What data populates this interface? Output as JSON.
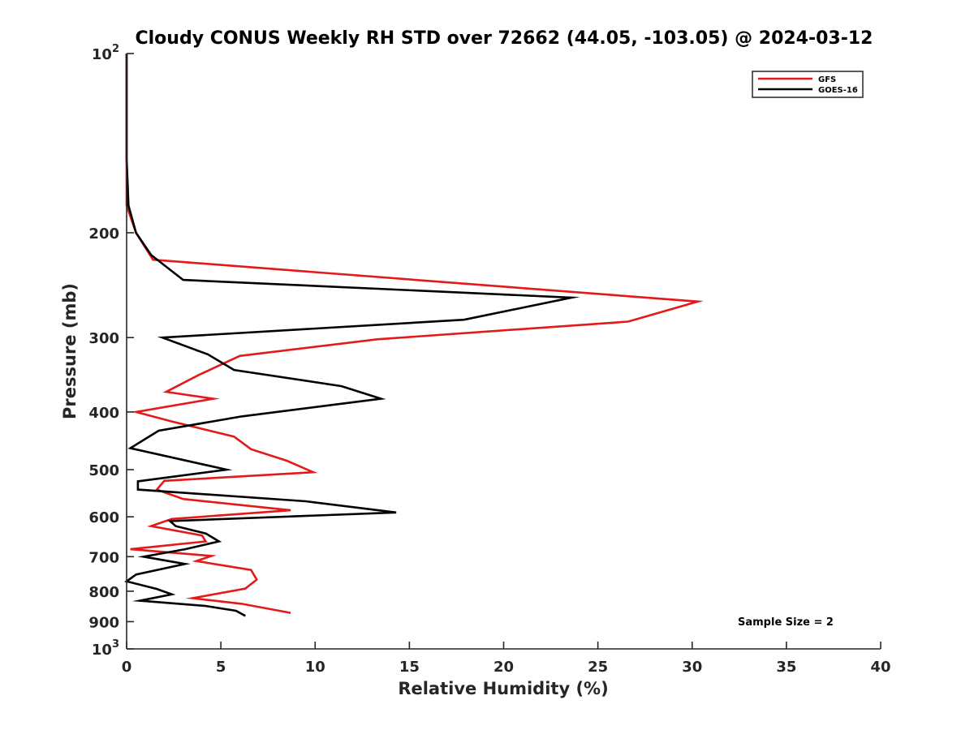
{
  "chart_data": {
    "type": "line",
    "title": "Cloudy CONUS Weekly RH STD over 72662 (44.05, -103.05) @ 2024-03-12",
    "xlabel": "Relative Humidity (%)",
    "ylabel": "Pressure (mb)",
    "xlim": [
      0,
      40
    ],
    "ylim": [
      100,
      1000
    ],
    "yscale": "log",
    "y_reversed": true,
    "x_ticks": [
      0,
      5,
      10,
      15,
      20,
      25,
      30,
      35,
      40
    ],
    "x_tick_labels": [
      "0",
      "5",
      "10",
      "15",
      "20",
      "25",
      "30",
      "35",
      "40"
    ],
    "y_ticks": [
      100,
      200,
      300,
      400,
      500,
      600,
      700,
      800,
      900,
      1000
    ],
    "y_tick_labels": [
      {
        "base": "10",
        "exp": "2"
      },
      {
        "base": "200",
        "exp": ""
      },
      {
        "base": "300",
        "exp": ""
      },
      {
        "base": "400",
        "exp": ""
      },
      {
        "base": "500",
        "exp": ""
      },
      {
        "base": "600",
        "exp": ""
      },
      {
        "base": "700",
        "exp": ""
      },
      {
        "base": "800",
        "exp": ""
      },
      {
        "base": "900",
        "exp": ""
      },
      {
        "base": "10",
        "exp": "3"
      }
    ],
    "grid": false,
    "legend_position": "top-right",
    "annotation": "Sample Size = 2",
    "series": [
      {
        "name": "GFS",
        "color": "#e41a1a",
        "x": [
          0.0,
          0.0,
          0.0,
          0.0,
          0.5,
          1.4,
          30.3,
          26.6,
          13.3,
          6.0,
          3.8,
          2.1,
          4.6,
          0.5,
          2.4,
          5.7,
          6.6,
          8.5,
          9.9,
          2.0,
          1.6,
          3.0,
          8.7,
          2.4,
          1.3,
          4.0,
          4.2,
          0.2,
          4.5,
          3.7,
          6.6,
          6.9,
          6.3,
          3.5,
          6.1,
          8.7
        ],
        "y": [
          100,
          120,
          150,
          180,
          200,
          222,
          261,
          282,
          302,
          322,
          347,
          370,
          380,
          400,
          415,
          440,
          462,
          483,
          505,
          522,
          540,
          560,
          585,
          605,
          622,
          645,
          660,
          680,
          698,
          712,
          737,
          765,
          792,
          822,
          840,
          870
        ]
      },
      {
        "name": "GOES-16",
        "color": "#000000",
        "x": [
          0.0,
          0.0,
          0.0,
          0.1,
          0.5,
          1.3,
          3.0,
          23.6,
          17.9,
          1.9,
          4.3,
          5.7,
          11.4,
          13.5,
          6.1,
          1.7,
          0.2,
          5.3,
          0.6,
          0.6,
          9.5,
          14.3,
          2.3,
          2.6,
          4.2,
          4.9,
          3.1,
          0.9,
          3.1,
          0.5,
          0.0,
          1.6,
          2.4,
          0.7,
          4.2,
          5.8,
          6.3
        ],
        "y": [
          100,
          120,
          150,
          180,
          200,
          218,
          240,
          257,
          280,
          300,
          320,
          340,
          362,
          380,
          407,
          430,
          460,
          500,
          523,
          540,
          565,
          590,
          610,
          622,
          640,
          660,
          680,
          700,
          720,
          750,
          770,
          793,
          810,
          830,
          847,
          863,
          880
        ]
      }
    ]
  }
}
